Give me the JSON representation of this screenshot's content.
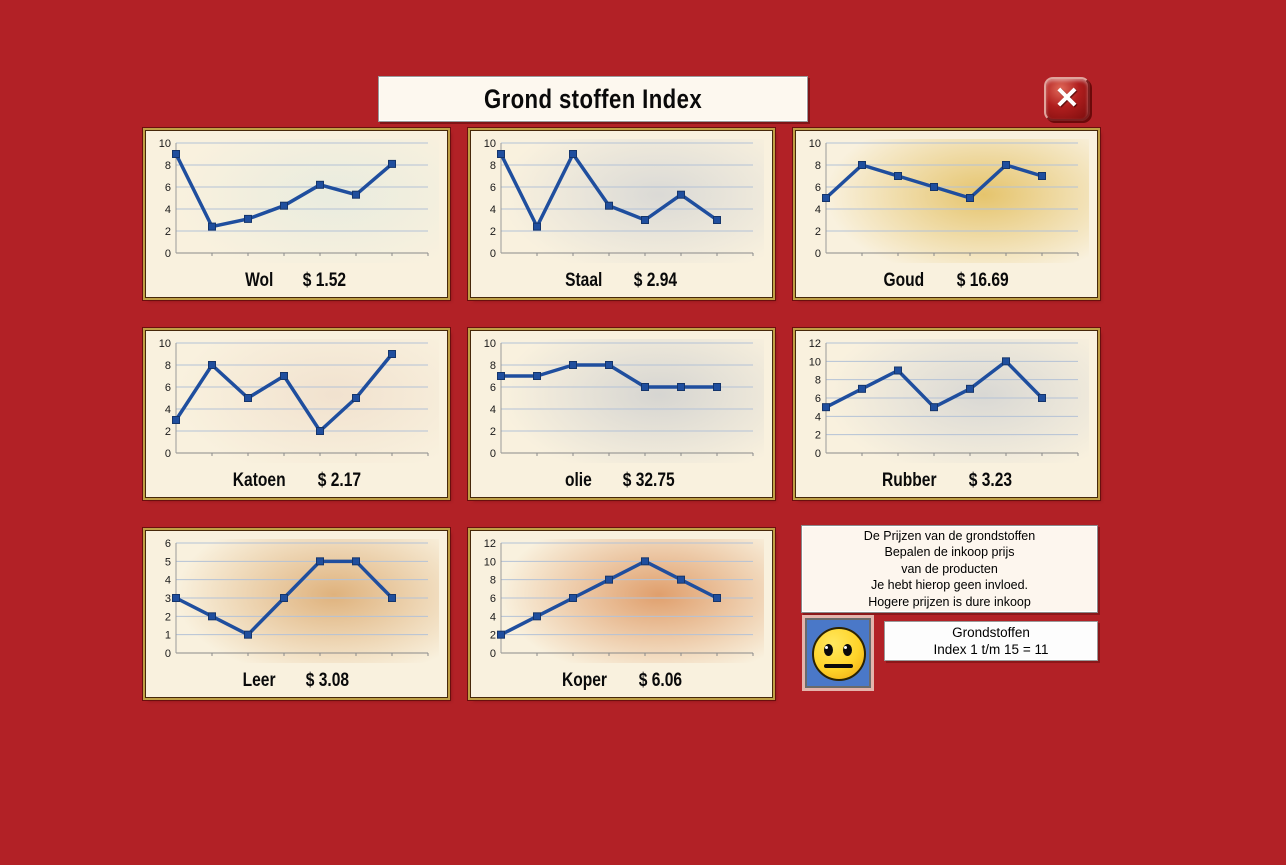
{
  "title": "Grond stoffen Index",
  "close_button": {
    "glyph": "✕"
  },
  "colors": {
    "background": "#b22126",
    "panel_background": "#f9f1de",
    "line": "#1f4e9e",
    "marker_border": "#15356b",
    "gridline": "#b4c2d6",
    "gold_border": "#bfa045"
  },
  "chart_data": [
    {
      "type": "line",
      "name": "Wol",
      "price": "$ 1.52",
      "ymax": 10,
      "ystep": 2,
      "values": [
        9,
        2.4,
        3.1,
        4.3,
        6.2,
        5.3,
        8.1
      ],
      "tint": "#e7ebdf"
    },
    {
      "type": "line",
      "name": "Staal",
      "price": "$ 2.94",
      "ymax": 10,
      "ystep": 2,
      "values": [
        9,
        2.4,
        9,
        4.3,
        3,
        5.3,
        3
      ],
      "tint": "#d7d7d5"
    },
    {
      "type": "line",
      "name": "Goud",
      "price": "$ 16.69",
      "ymax": 10,
      "ystep": 2,
      "values": [
        5,
        8,
        7,
        6,
        5,
        8,
        7
      ],
      "tint": "#e3bf60"
    },
    {
      "type": "line",
      "name": "Katoen",
      "price": "$ 2.17",
      "ymax": 10,
      "ystep": 2,
      "values": [
        3,
        8,
        5,
        7,
        2,
        5,
        9
      ],
      "tint": "#f0e0cd"
    },
    {
      "type": "line",
      "name": "olie",
      "price": "$ 32.75",
      "ymax": 10,
      "ystep": 2,
      "values": [
        7,
        7,
        8,
        8,
        6,
        6,
        6
      ],
      "tint": "#d2d2d0"
    },
    {
      "type": "line",
      "name": "Rubber",
      "price": "$ 3.23",
      "ymax": 12,
      "ystep": 2,
      "values": [
        5,
        7,
        9,
        5,
        7,
        10,
        6
      ],
      "tint": "#d5d5d3"
    },
    {
      "type": "line",
      "name": "Leer",
      "price": "$ 3.08",
      "ymax": 6,
      "ystep": 1,
      "values": [
        3,
        2,
        1,
        3,
        5,
        5,
        3
      ],
      "tint": "#dcab72"
    },
    {
      "type": "line",
      "name": "Koper",
      "price": "$ 6.06",
      "ymax": 12,
      "ystep": 2,
      "values": [
        2,
        4,
        6,
        8,
        10,
        8,
        6
      ],
      "tint": "#dd9660"
    }
  ],
  "info_box": {
    "lines": [
      "De Prijzen van de grondstoffen",
      "Bepalen de inkoop prijs",
      "van de producten",
      "Je hebt hierop geen invloed.",
      "Hogere prijzen is dure inkoop"
    ]
  },
  "mood": {
    "state": "neutral-face"
  },
  "index_box": {
    "line1": "Grondstoffen",
    "line2": "Index 1 t/m 15 =  11"
  }
}
